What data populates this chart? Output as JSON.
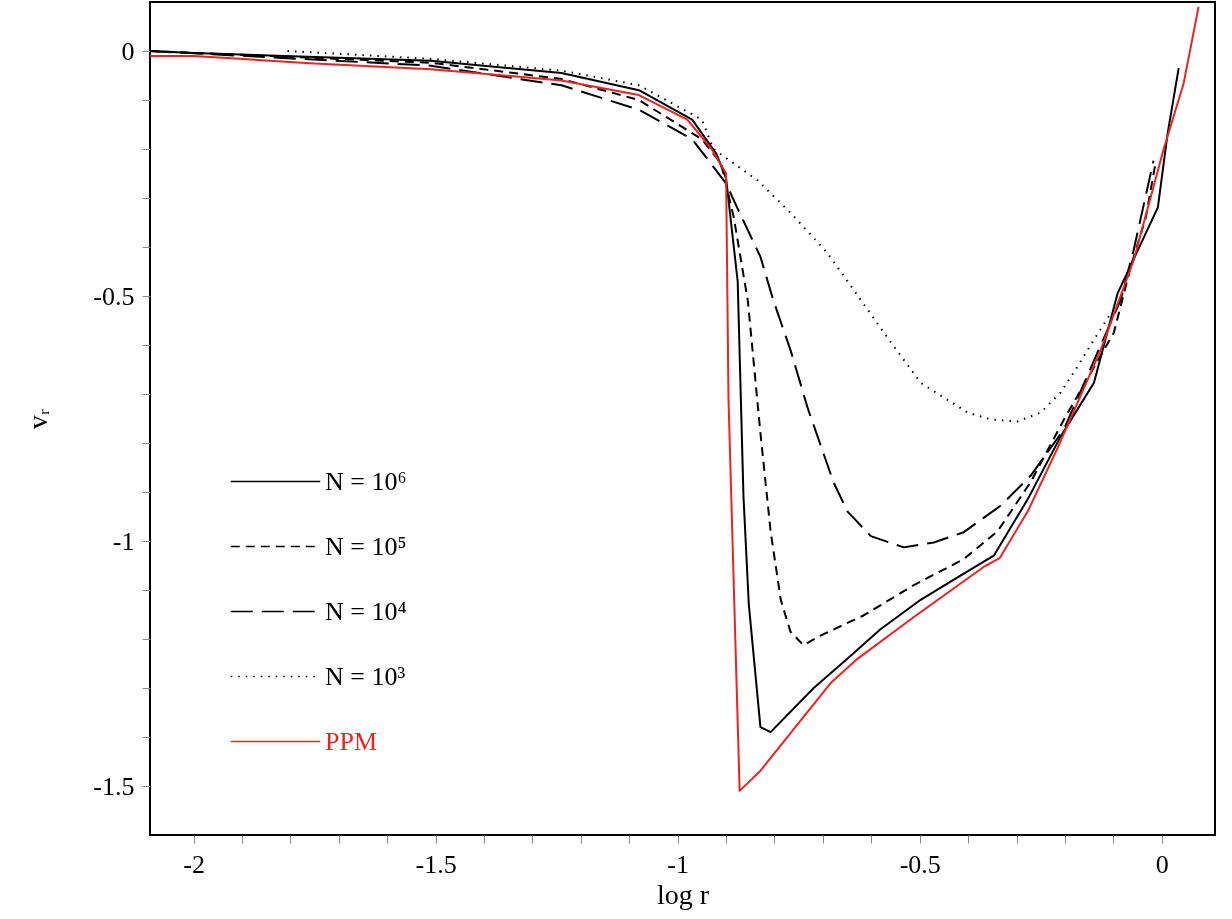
{
  "chart_data": {
    "type": "line",
    "xlabel": "log r",
    "ylabel": "vᵣ",
    "xlim": [
      -2.09,
      0.11
    ],
    "ylim": [
      -1.6,
      0.1
    ],
    "xticks": [
      -2,
      {
        "value": -1.9,
        "label": null
      },
      {
        "value": -1.8,
        "label": null
      },
      {
        "value": -1.7,
        "label": null
      },
      {
        "value": -1.6,
        "label": null
      },
      -1.5,
      {
        "value": -1.4,
        "label": null
      },
      {
        "value": -1.3,
        "label": null
      },
      {
        "value": -1.2,
        "label": null
      },
      {
        "value": -1.1,
        "label": null
      },
      -1,
      {
        "value": -0.9,
        "label": null
      },
      {
        "value": -0.8,
        "label": null
      },
      {
        "value": -0.7,
        "label": null
      },
      {
        "value": -0.6,
        "label": null
      },
      -0.5,
      {
        "value": -0.4,
        "label": null
      },
      {
        "value": -0.3,
        "label": null
      },
      {
        "value": -0.2,
        "label": null
      },
      {
        "value": -0.1,
        "label": null
      },
      0
    ],
    "yticks": [
      -1.5,
      {
        "value": -1.4,
        "label": null
      },
      {
        "value": -1.3,
        "label": null
      },
      {
        "value": -1.2,
        "label": null
      },
      {
        "value": -1.1,
        "label": null
      },
      -1,
      {
        "value": -0.9,
        "label": null
      },
      {
        "value": -0.8,
        "label": null
      },
      {
        "value": -0.7,
        "label": null
      },
      {
        "value": -0.6,
        "label": null
      },
      -0.5,
      {
        "value": -0.4,
        "label": null
      },
      {
        "value": -0.3,
        "label": null
      },
      {
        "value": -0.2,
        "label": null
      },
      {
        "value": -0.1,
        "label": null
      },
      0
    ],
    "grid": false,
    "legend": "bottom left",
    "marker": "none",
    "series": [
      {
        "name": "N = 10⁶",
        "color": "#000000",
        "line_style": "solid",
        "x": [
          -2.09,
          -2,
          -1.51,
          -1.24,
          -1.08,
          -0.97,
          -0.92,
          -0.9,
          -0.876,
          -0.864,
          -0.853,
          -0.829,
          -0.808,
          -0.719,
          -0.649,
          -0.581,
          -0.498,
          -0.415,
          -0.347,
          -0.277,
          -0.209,
          -0.14,
          -0.091,
          -0.043,
          -0.008,
          0.012,
          0.035
        ],
        "values": [
          0,
          -0.004,
          -0.02,
          -0.045,
          -0.08,
          -0.14,
          -0.21,
          -0.26,
          -0.47,
          -0.91,
          -1.13,
          -1.38,
          -1.39,
          -1.3,
          -1.24,
          -1.18,
          -1.12,
          -1.07,
          -1.03,
          -0.915,
          -0.787,
          -0.677,
          -0.494,
          -0.393,
          -0.319,
          -0.169,
          -0.035
        ]
      },
      {
        "name": "N = 10⁵",
        "color": "#000000",
        "line_style": "dashed",
        "x": [
          -2.09,
          -1.51,
          -1.24,
          -1.08,
          -0.95,
          -0.91,
          -0.884,
          -0.855,
          -0.829,
          -0.808,
          -0.787,
          -0.767,
          -0.74,
          -0.705,
          -0.616,
          -0.512,
          -0.409,
          -0.339,
          -0.271,
          -0.202,
          -0.099,
          -0.064,
          -0.033,
          -0.012
        ],
        "values": [
          0,
          -0.024,
          -0.057,
          -0.1,
          -0.18,
          -0.23,
          -0.34,
          -0.51,
          -0.78,
          -0.98,
          -1.12,
          -1.185,
          -1.213,
          -1.193,
          -1.152,
          -1.09,
          -1.037,
          -0.98,
          -0.88,
          -0.752,
          -0.575,
          -0.44,
          -0.34,
          -0.224
        ]
      },
      {
        "name": "N = 10⁴",
        "color": "#000000",
        "line_style": "longdash",
        "x": [
          -2.09,
          -1.51,
          -1.24,
          -1.08,
          -0.97,
          -0.9,
          -0.884,
          -0.829,
          -0.802,
          -0.767,
          -0.731,
          -0.678,
          -0.649,
          -0.601,
          -0.533,
          -0.471,
          -0.409,
          -0.333,
          -0.271,
          -0.202,
          -0.085,
          -0.058,
          -0.017
        ],
        "values": [
          0,
          -0.03,
          -0.07,
          -0.12,
          -0.18,
          -0.27,
          -0.305,
          -0.42,
          -0.51,
          -0.61,
          -0.73,
          -0.88,
          -0.94,
          -0.99,
          -1.013,
          -1.003,
          -0.982,
          -0.928,
          -0.867,
          -0.772,
          -0.508,
          -0.406,
          -0.224
        ]
      },
      {
        "name": "N = 10³",
        "color": "#000000",
        "line_style": "dotted",
        "x": [
          -1.806,
          -1.51,
          -1.24,
          -1.08,
          -0.95,
          -0.926,
          -0.835,
          -0.767,
          -0.69,
          -0.636,
          -0.574,
          -0.498,
          -0.401,
          -0.353,
          -0.298,
          -0.25,
          -0.209,
          -0.174,
          -0.14,
          -0.105
        ],
        "values": [
          0,
          -0.016,
          -0.04,
          -0.07,
          -0.14,
          -0.2,
          -0.264,
          -0.33,
          -0.413,
          -0.488,
          -0.575,
          -0.677,
          -0.738,
          -0.752,
          -0.756,
          -0.738,
          -0.697,
          -0.644,
          -0.589,
          -0.535
        ]
      },
      {
        "name": "PPM",
        "color": "#ee2222",
        "line_style": "solid",
        "x": [
          -2.09,
          -2,
          -1.76,
          -1.51,
          -1.24,
          -1.08,
          -0.98,
          -0.93,
          -0.9,
          -0.895,
          -0.872,
          -0.83,
          -0.684,
          -0.628,
          -0.512,
          -0.368,
          -0.335,
          -0.277,
          -0.215,
          -0.126,
          -0.058,
          0.004,
          0.045,
          0.076
        ],
        "values": [
          -0.01,
          -0.01,
          -0.025,
          -0.037,
          -0.06,
          -0.09,
          -0.14,
          -0.2,
          -0.25,
          -0.71,
          -1.51,
          -1.47,
          -1.29,
          -1.24,
          -1.155,
          -1.053,
          -1.035,
          -0.94,
          -0.81,
          -0.61,
          -0.427,
          -0.2,
          -0.067,
          0.09
        ]
      }
    ]
  }
}
